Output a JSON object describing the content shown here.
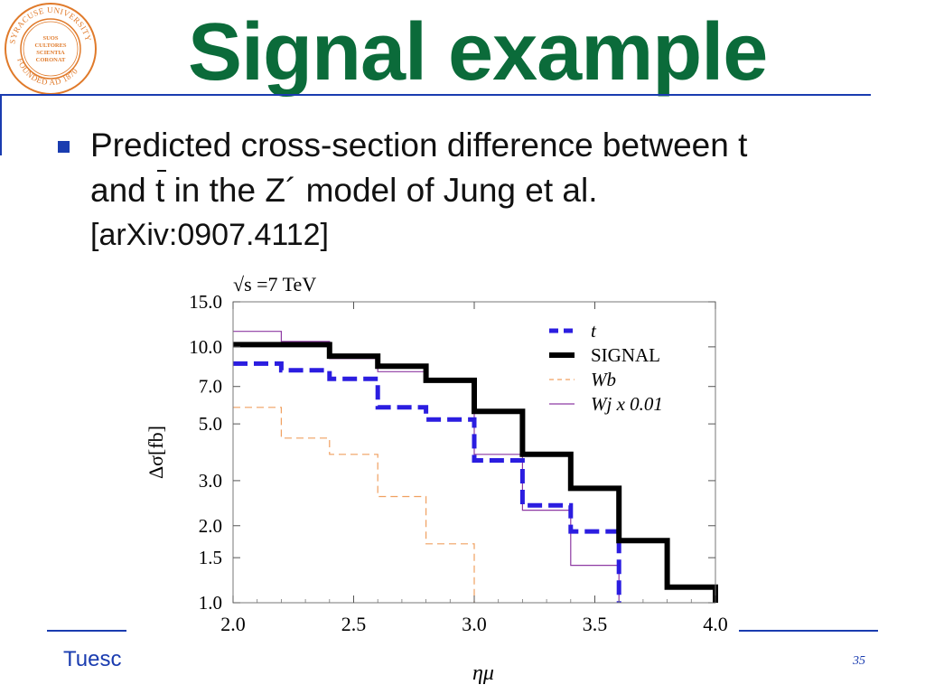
{
  "slide": {
    "title": "Signal example",
    "bullet_line1": "Predicted cross-section difference between t",
    "bullet_line2_a": "and ",
    "bullet_line2_tbar": "t",
    "bullet_line2_b": " in the Z´ model of Jung et al.",
    "bullet_line3": "[arXiv:0907.4112]",
    "footer_text": "Tuesc",
    "page_number": "35"
  },
  "logo": {
    "ring_top": "SYRACUSE UNIVERSITY",
    "ring_bottom": "FOUNDED AD 1870",
    "motto": [
      "SUOS",
      "CULTORES",
      "SCIENTIA",
      "CORONAT"
    ]
  },
  "colors": {
    "title": "#0b6b3a",
    "accent": "#1a3cb0",
    "t": "#2b1de0",
    "signal": "#000000",
    "wb": "#f0a060",
    "wj": "#8e3aa3"
  },
  "chart_data": {
    "type": "line",
    "title": "√s =7 TeV",
    "xlabel": "ημ",
    "ylabel": "Δσ[fb]",
    "xlim": [
      2.0,
      4.0
    ],
    "ylim": [
      1.0,
      15.0
    ],
    "y_scale": "log",
    "xticks": [
      "2.0",
      "2.5",
      "3.0",
      "3.5",
      "4.0"
    ],
    "yticks": [
      "15.0",
      "10.0",
      "7.0",
      "5.0",
      "3.0",
      "2.0",
      "1.5",
      "1.0"
    ],
    "legend_position": "top-right",
    "series": [
      {
        "name": "t",
        "style": "dashed",
        "edges": [
          2.0,
          2.2,
          2.4,
          2.6,
          2.8,
          3.0,
          3.2,
          3.4,
          3.6
        ],
        "values": [
          8.6,
          8.1,
          7.5,
          5.8,
          5.2,
          3.6,
          2.4,
          1.9
        ]
      },
      {
        "name": "SIGNAL",
        "style": "solid-thick",
        "edges": [
          2.0,
          2.2,
          2.4,
          2.6,
          2.8,
          3.0,
          3.2,
          3.4,
          3.6,
          3.8,
          4.0
        ],
        "values": [
          10.2,
          10.2,
          9.2,
          8.4,
          7.4,
          5.6,
          3.8,
          2.8,
          1.75,
          1.15
        ]
      },
      {
        "name": "Wb",
        "style": "dashed-thin",
        "edges": [
          2.0,
          2.2,
          2.4,
          2.6,
          2.8,
          3.0
        ],
        "values": [
          5.8,
          4.4,
          3.8,
          2.6,
          1.7
        ]
      },
      {
        "name": "Wj x 0.01",
        "style": "solid-thin",
        "edges": [
          2.0,
          2.2,
          2.4,
          2.6,
          2.8,
          3.0,
          3.2,
          3.4,
          3.6
        ],
        "values": [
          11.5,
          10.5,
          9.0,
          8.0,
          7.4,
          3.8,
          2.3,
          1.4
        ]
      }
    ]
  }
}
